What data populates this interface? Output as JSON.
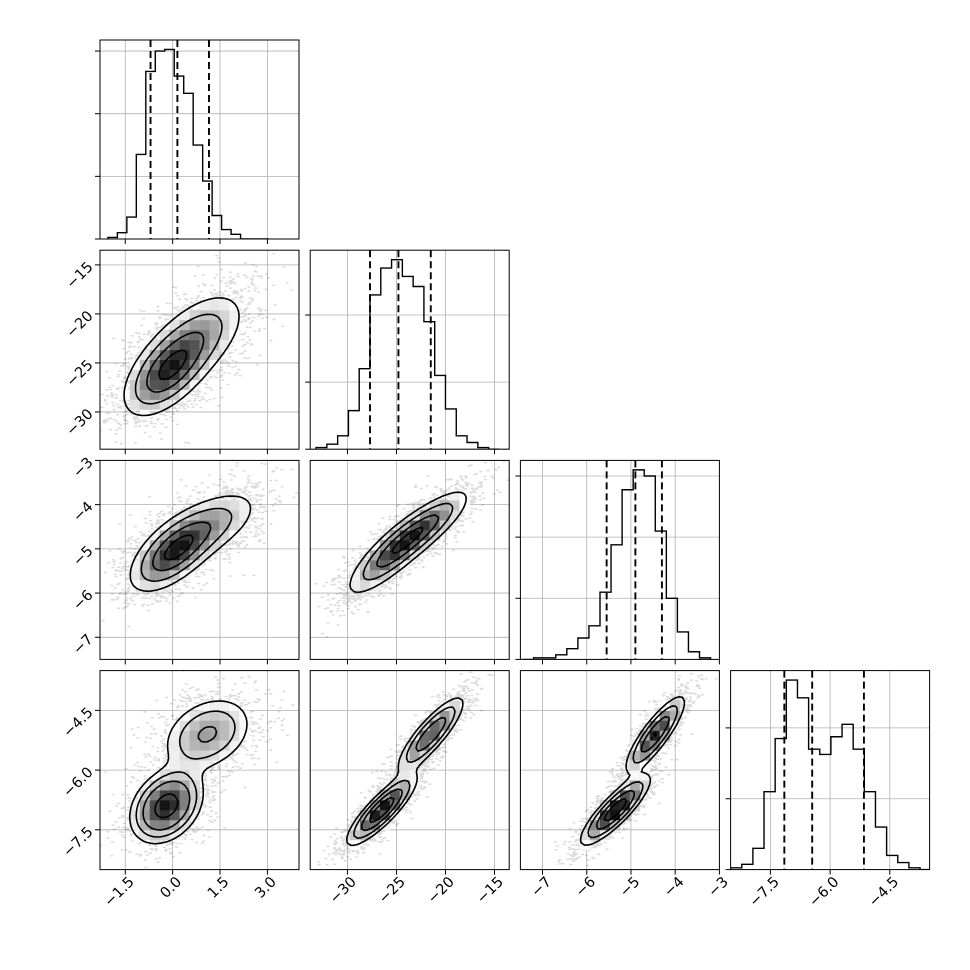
{
  "chart_data": {
    "type": "corner",
    "n_params": 4,
    "grid": true,
    "params": [
      {
        "range": [
          -2.3,
          4.0
        ],
        "ticks": [
          -1.5,
          0.0,
          1.5,
          3.0
        ],
        "tick_labels": [
          "−1.5",
          "0.0",
          "1.5",
          "3.0"
        ],
        "quantiles": [
          -0.7,
          0.15,
          1.15
        ],
        "hist": {
          "start": -2.05,
          "width": 0.3,
          "counts": [
            1,
            4,
            14,
            54,
            107,
            120,
            121,
            104,
            93,
            60,
            37,
            15,
            6,
            3,
            0,
            0,
            0
          ]
        }
      },
      {
        "range": [
          -33.8,
          -13.5
        ],
        "ticks": [
          -30,
          -25,
          -20,
          -15
        ],
        "tick_labels": [
          "−30",
          "−25",
          "−20",
          "−15"
        ],
        "quantiles": [
          -27.7,
          -24.8,
          -21.5
        ],
        "hist": {
          "start": -33.2,
          "width": 1.1,
          "counts": [
            1,
            3,
            8,
            23,
            48,
            92,
            108,
            113,
            103,
            97,
            76,
            44,
            24,
            8,
            4,
            1,
            0
          ]
        }
      },
      {
        "range": [
          -7.5,
          -3.0
        ],
        "ticks": [
          -7,
          -6,
          -5,
          -4,
          -3
        ],
        "tick_labels": [
          "−7",
          "−6",
          "−5",
          "−4",
          "−3"
        ],
        "quantiles": [
          -5.55,
          -4.9,
          -4.3
        ],
        "hist": {
          "start": -7.45,
          "width": 0.25,
          "counts": [
            0,
            1,
            1,
            3,
            7,
            14,
            22,
            44,
            75,
            111,
            124,
            120,
            84,
            40,
            18,
            5,
            1
          ]
        }
      },
      {
        "range": [
          -8.5,
          -3.5
        ],
        "ticks": [
          -7.5,
          -6.0,
          -4.5
        ],
        "tick_labels": [
          "−7.5",
          "−6.0",
          "−4.5"
        ],
        "quantiles": [
          -7.15,
          -6.45,
          -5.15
        ],
        "hist": {
          "start": -8.5,
          "width": 0.28,
          "counts": [
            1,
            3,
            12,
            44,
            74,
            107,
            97,
            68,
            65,
            75,
            82,
            68,
            44,
            24,
            8,
            4,
            1,
            0
          ]
        }
      }
    ],
    "pairs": [
      {
        "x": 0,
        "y": 1,
        "rho": 0.55,
        "modes": [
          {
            "mx": -0.2,
            "my": -26.0,
            "sx": 0.7,
            "sy": 2.3,
            "w": 0.55
          },
          {
            "mx": 0.75,
            "my": -22.5,
            "sx": 0.85,
            "sy": 2.6,
            "w": 0.45
          }
        ]
      },
      {
        "x": 0,
        "y": 2,
        "rho": 0.6,
        "modes": [
          {
            "mx": 0.0,
            "my": -5.1,
            "sx": 0.7,
            "sy": 0.45,
            "w": 0.6
          },
          {
            "mx": 1.1,
            "my": -4.5,
            "sx": 0.9,
            "sy": 0.45,
            "w": 0.4
          }
        ]
      },
      {
        "x": 0,
        "y": 3,
        "rho": 0.3,
        "modes": [
          {
            "mx": -0.2,
            "my": -6.9,
            "sx": 0.55,
            "sy": 0.45,
            "w": 0.6
          },
          {
            "mx": 1.1,
            "my": -5.1,
            "sx": 0.75,
            "sy": 0.5,
            "w": 0.4
          }
        ]
      },
      {
        "x": 1,
        "y": 2,
        "rho": 0.82,
        "modes": [
          {
            "mx": -25.5,
            "my": -5.1,
            "sx": 2.4,
            "sy": 0.5,
            "w": 0.55
          },
          {
            "mx": -22.0,
            "my": -4.5,
            "sx": 2.4,
            "sy": 0.45,
            "w": 0.45
          }
        ]
      },
      {
        "x": 1,
        "y": 3,
        "rho": 0.85,
        "modes": [
          {
            "mx": -26.5,
            "my": -7.0,
            "sx": 1.8,
            "sy": 0.45,
            "w": 0.55
          },
          {
            "mx": -21.5,
            "my": -5.1,
            "sx": 1.8,
            "sy": 0.5,
            "w": 0.45
          }
        ]
      },
      {
        "x": 2,
        "y": 3,
        "rho": 0.85,
        "modes": [
          {
            "mx": -5.35,
            "my": -7.0,
            "sx": 0.4,
            "sy": 0.45,
            "w": 0.55
          },
          {
            "mx": -4.45,
            "my": -5.1,
            "sx": 0.35,
            "sy": 0.5,
            "w": 0.45
          }
        ]
      }
    ]
  }
}
